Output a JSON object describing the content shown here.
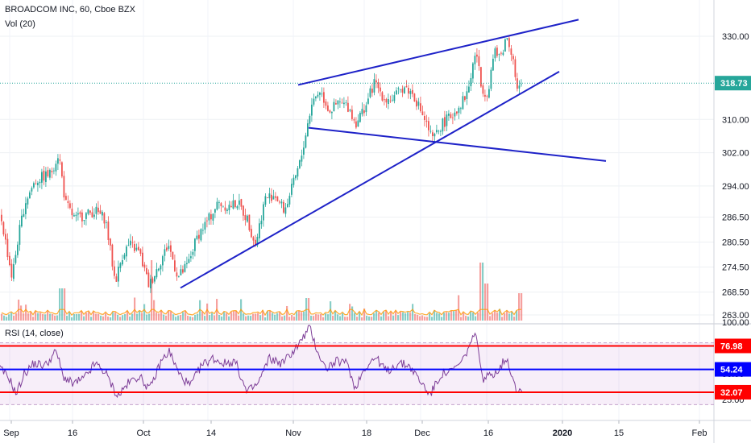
{
  "chart_data": [
    {
      "type": "candlestick",
      "title": "BROADCOM INC, 60, Cboe BZX",
      "volume_label": "Vol (20)",
      "last_price": 318.73,
      "y_ticks": [
        263.0,
        268.5,
        274.5,
        280.5,
        286.5,
        294.0,
        302.0,
        310.0,
        330.0
      ],
      "y_tick_labels": [
        "263.00",
        "268.50",
        "274.50",
        "280.50",
        "286.50",
        "294.00",
        "302.00",
        "310.00",
        "330.00"
      ],
      "x_tick_labels": [
        "Sep",
        "16",
        "Oct",
        "14",
        "Nov",
        "18",
        "Dec",
        "16",
        "2020",
        "15",
        "Feb"
      ],
      "anchors": [
        {
          "x": 0,
          "y": 287
        },
        {
          "x": 14,
          "y": 272
        },
        {
          "x": 22,
          "y": 282
        },
        {
          "x": 30,
          "y": 290
        },
        {
          "x": 42,
          "y": 295
        },
        {
          "x": 50,
          "y": 296
        },
        {
          "x": 62,
          "y": 297
        },
        {
          "x": 72,
          "y": 302
        },
        {
          "x": 80,
          "y": 290
        },
        {
          "x": 92,
          "y": 286
        },
        {
          "x": 104,
          "y": 287
        },
        {
          "x": 118,
          "y": 288
        },
        {
          "x": 130,
          "y": 286
        },
        {
          "x": 142,
          "y": 271
        },
        {
          "x": 152,
          "y": 278
        },
        {
          "x": 160,
          "y": 280
        },
        {
          "x": 172,
          "y": 278
        },
        {
          "x": 184,
          "y": 270
        },
        {
          "x": 196,
          "y": 275
        },
        {
          "x": 208,
          "y": 280
        },
        {
          "x": 220,
          "y": 272
        },
        {
          "x": 232,
          "y": 275
        },
        {
          "x": 244,
          "y": 282
        },
        {
          "x": 258,
          "y": 286
        },
        {
          "x": 270,
          "y": 290
        },
        {
          "x": 282,
          "y": 289
        },
        {
          "x": 294,
          "y": 290
        },
        {
          "x": 306,
          "y": 286
        },
        {
          "x": 316,
          "y": 280
        },
        {
          "x": 328,
          "y": 291
        },
        {
          "x": 340,
          "y": 292
        },
        {
          "x": 352,
          "y": 288
        },
        {
          "x": 364,
          "y": 295
        },
        {
          "x": 372,
          "y": 300
        },
        {
          "x": 380,
          "y": 308
        },
        {
          "x": 386,
          "y": 314
        },
        {
          "x": 396,
          "y": 317
        },
        {
          "x": 408,
          "y": 312
        },
        {
          "x": 420,
          "y": 314
        },
        {
          "x": 432,
          "y": 313
        },
        {
          "x": 440,
          "y": 309
        },
        {
          "x": 452,
          "y": 313
        },
        {
          "x": 464,
          "y": 319
        },
        {
          "x": 476,
          "y": 315
        },
        {
          "x": 488,
          "y": 315
        },
        {
          "x": 500,
          "y": 318
        },
        {
          "x": 512,
          "y": 316
        },
        {
          "x": 524,
          "y": 311
        },
        {
          "x": 536,
          "y": 305
        },
        {
          "x": 548,
          "y": 309
        },
        {
          "x": 560,
          "y": 311
        },
        {
          "x": 572,
          "y": 314
        },
        {
          "x": 580,
          "y": 317
        },
        {
          "x": 590,
          "y": 327
        },
        {
          "x": 596,
          "y": 318
        },
        {
          "x": 604,
          "y": 316
        },
        {
          "x": 612,
          "y": 326
        },
        {
          "x": 620,
          "y": 325
        },
        {
          "x": 628,
          "y": 330
        },
        {
          "x": 636,
          "y": 325
        },
        {
          "x": 640,
          "y": 317
        },
        {
          "x": 648,
          "y": 318
        }
      ],
      "trendlines": [
        {
          "x1": 370,
          "y1": 318.3,
          "x2": 718,
          "y2": 334.0
        },
        {
          "x1": 224,
          "y1": 269.5,
          "x2": 694,
          "y2": 321.5
        },
        {
          "x1": 383,
          "y1": 308.0,
          "x2": 752,
          "y2": 300.0
        }
      ]
    },
    {
      "type": "line",
      "title": "RSI (14, close)",
      "y_ticks": [
        25.0,
        50.0,
        100.0
      ],
      "y_tick_labels": [
        "25.00",
        "50.00",
        "100.00"
      ],
      "levels": [
        {
          "value": 76.98,
          "label": "76.98",
          "color": "#ff0000"
        },
        {
          "value": 54.24,
          "label": "54.24",
          "color": "#0000ff"
        },
        {
          "value": 32.07,
          "label": "32.07",
          "color": "#ff0000"
        }
      ],
      "band": [
        20,
        80
      ],
      "anchors": [
        {
          "x": 0,
          "y": 55
        },
        {
          "x": 12,
          "y": 45
        },
        {
          "x": 20,
          "y": 30
        },
        {
          "x": 30,
          "y": 50
        },
        {
          "x": 42,
          "y": 60
        },
        {
          "x": 56,
          "y": 58
        },
        {
          "x": 70,
          "y": 72
        },
        {
          "x": 78,
          "y": 48
        },
        {
          "x": 90,
          "y": 40
        },
        {
          "x": 104,
          "y": 45
        },
        {
          "x": 118,
          "y": 60
        },
        {
          "x": 130,
          "y": 52
        },
        {
          "x": 146,
          "y": 28
        },
        {
          "x": 158,
          "y": 40
        },
        {
          "x": 172,
          "y": 48
        },
        {
          "x": 186,
          "y": 35
        },
        {
          "x": 200,
          "y": 62
        },
        {
          "x": 210,
          "y": 72
        },
        {
          "x": 222,
          "y": 50
        },
        {
          "x": 236,
          "y": 38
        },
        {
          "x": 250,
          "y": 58
        },
        {
          "x": 264,
          "y": 65
        },
        {
          "x": 278,
          "y": 60
        },
        {
          "x": 292,
          "y": 62
        },
        {
          "x": 306,
          "y": 32
        },
        {
          "x": 320,
          "y": 40
        },
        {
          "x": 334,
          "y": 65
        },
        {
          "x": 350,
          "y": 60
        },
        {
          "x": 364,
          "y": 72
        },
        {
          "x": 374,
          "y": 82
        },
        {
          "x": 384,
          "y": 95
        },
        {
          "x": 394,
          "y": 72
        },
        {
          "x": 404,
          "y": 55
        },
        {
          "x": 418,
          "y": 62
        },
        {
          "x": 432,
          "y": 60
        },
        {
          "x": 440,
          "y": 35
        },
        {
          "x": 452,
          "y": 55
        },
        {
          "x": 466,
          "y": 66
        },
        {
          "x": 480,
          "y": 52
        },
        {
          "x": 494,
          "y": 60
        },
        {
          "x": 508,
          "y": 58
        },
        {
          "x": 522,
          "y": 42
        },
        {
          "x": 534,
          "y": 30
        },
        {
          "x": 548,
          "y": 50
        },
        {
          "x": 560,
          "y": 52
        },
        {
          "x": 574,
          "y": 62
        },
        {
          "x": 584,
          "y": 80
        },
        {
          "x": 592,
          "y": 88
        },
        {
          "x": 598,
          "y": 45
        },
        {
          "x": 608,
          "y": 48
        },
        {
          "x": 620,
          "y": 55
        },
        {
          "x": 628,
          "y": 66
        },
        {
          "x": 636,
          "y": 48
        },
        {
          "x": 642,
          "y": 33
        },
        {
          "x": 648,
          "y": 35
        }
      ]
    }
  ]
}
